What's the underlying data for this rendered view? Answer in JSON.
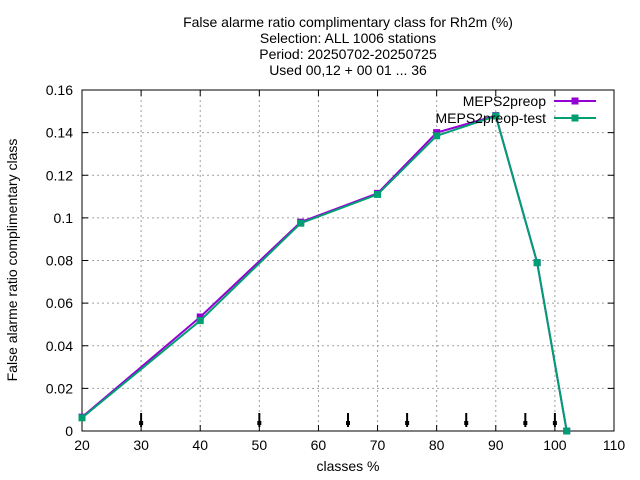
{
  "chart_data": {
    "type": "line",
    "title_lines": [
      "False alarme ratio complimentary class  for Rh2m (%)",
      "Selection: ALL    1006 stations",
      "Period: 20250702-20250725",
      "Used 00,12 + 00 01 ... 36"
    ],
    "xlabel": "classes %",
    "ylabel": "False alarme ratio complimentary class",
    "xlim": [
      20,
      110
    ],
    "ylim": [
      0,
      0.16
    ],
    "x_ticks": [
      20,
      30,
      40,
      50,
      60,
      70,
      80,
      90,
      100,
      110
    ],
    "x_tick_labels": [
      "20",
      "30",
      "40",
      "50",
      "60",
      "70",
      "80",
      "90",
      "100",
      "110"
    ],
    "y_ticks": [
      0,
      0.02,
      0.04,
      0.06,
      0.08,
      0.1,
      0.12,
      0.14,
      0.16
    ],
    "y_tick_labels": [
      "0",
      "0.02",
      "0.04",
      "0.06",
      "0.08",
      "0.1",
      "0.12",
      "0.14",
      "0.16"
    ],
    "grid": true,
    "legend_position": "top-right",
    "series": [
      {
        "name": "MEPS2preop",
        "color": "#9400d3",
        "x": [
          20,
          40,
          57,
          70,
          80,
          90,
          97,
          102
        ],
        "y": [
          0.0065,
          0.0535,
          0.098,
          0.1115,
          0.14,
          0.148,
          0.079,
          0
        ]
      },
      {
        "name": "MEPS2preop-test",
        "color": "#009e73",
        "x": [
          20,
          40,
          57,
          70,
          80,
          90,
          97,
          102
        ],
        "y": [
          0.0062,
          0.0518,
          0.0975,
          0.111,
          0.1385,
          0.1478,
          0.079,
          0
        ]
      }
    ],
    "class_markers_x": [
      30,
      50,
      65,
      75,
      85,
      95,
      100
    ]
  }
}
